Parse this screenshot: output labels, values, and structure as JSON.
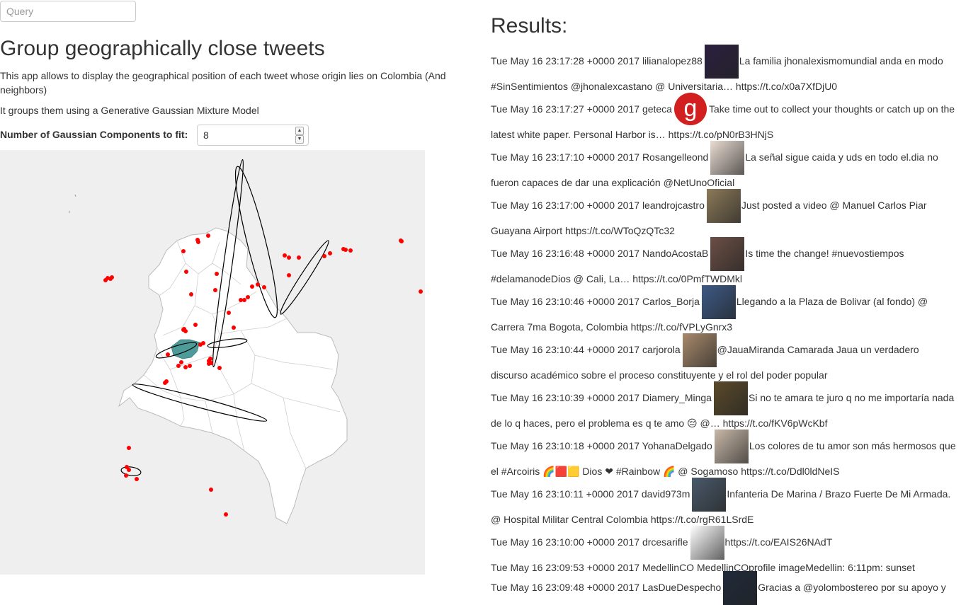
{
  "query": {
    "placeholder": "Query",
    "value": ""
  },
  "app": {
    "title": "Group geographically close tweets",
    "description": "This app allows to display the geographical position of each tweet whose origin lies on Colombia (And neighbors)",
    "description2": "It groups them using a Generative Gaussian Mixture Model",
    "components_label": "Number of Gaussian Components to fit:",
    "components_value": "8"
  },
  "map": {
    "background": "#efefef",
    "land_fill": "#ffffff",
    "border_color": "#bbbbbb",
    "point_color": "#ff0000",
    "ellipse_color": "#000000",
    "highlight_color": "#4e9c9a"
  },
  "results": {
    "title": "Results:",
    "tweets": [
      {
        "time": "Tue May 16 23:17:28 +0000 2017",
        "user": "lilianalopez88",
        "avatar_color": "#2b2040",
        "avatar_letter": "",
        "text": "La familia jhonalexismomundial anda en modo #SinSentimientos @jhonalexcastano @ Universitaria… https://t.co/x0a7XfDjU0"
      },
      {
        "time": "Tue May 16 23:17:27 +0000 2017",
        "user": "geteca",
        "avatar_color": "#d21f1f",
        "avatar_letter": "g",
        "text": "Take time out to collect your thoughts or catch up on the latest white paper. Personal Harbor is… https://t.co/pN0rB3HNjS"
      },
      {
        "time": "Tue May 16 23:17:10 +0000 2017",
        "user": "Rosangelleond",
        "avatar_color": "#e9dcd2",
        "avatar_letter": "",
        "text": "La señal sigue caida y uds en todo el.dia no fueron capaces de dar una explicación @NetUnoOficial"
      },
      {
        "time": "Tue May 16 23:17:00 +0000 2017",
        "user": "leandrojcastro",
        "avatar_color": "#8c7a5a",
        "avatar_letter": "",
        "text": "Just posted a video @ Manuel Carlos Piar Guayana Airport https://t.co/WToQzQTc32"
      },
      {
        "time": "Tue May 16 23:16:48 +0000 2017",
        "user": "NandoAcostaB",
        "avatar_color": "#6b4f45",
        "avatar_letter": "",
        "text": "Is time the change! #nuevostiempos #delamanodeDios @ Cali, La… https://t.co/0PmfTWDMkl"
      },
      {
        "time": "Tue May 16 23:10:46 +0000 2017",
        "user": "Carlos_Borja",
        "avatar_color": "#3d5a86",
        "avatar_letter": "",
        "text": "Llegando a la Plaza de Bolivar (al fondo) @ Carrera 7ma Bogota, Colombia https://t.co/fVPLyGnrx3"
      },
      {
        "time": "Tue May 16 23:10:44 +0000 2017",
        "user": "carjorola",
        "avatar_color": "#a88a6c",
        "avatar_letter": "",
        "text": "@JauaMiranda Camarada Jaua un verdadero discurso académico sobre el proceso constituyente y el rol del poder popular"
      },
      {
        "time": "Tue May 16 23:10:39 +0000 2017",
        "user": "Diamery_Minga",
        "avatar_color": "#5a4a2a",
        "avatar_letter": "",
        "text": "Si no te amara te juro q no me importaría nada de lo q haces, pero el problema es q te amo 😔 @… https://t.co/fKV6pWcKbf"
      },
      {
        "time": "Tue May 16 23:10:18 +0000 2017",
        "user": "YohanaDelgado",
        "avatar_color": "#c8b8a8",
        "avatar_letter": "",
        "text": "Los colores de tu amor son más hermosos que el #Arcoiris 🌈🟥🟨 Dios ❤ #Rainbow 🌈 @ Sogamoso https://t.co/Ddl0ldNeIS"
      },
      {
        "time": "Tue May 16 23:10:11 +0000 2017",
        "user": "david973m",
        "avatar_color": "#4a5a6a",
        "avatar_letter": "",
        "text": "Infanteria De Marina / Brazo Fuerte De Mi Armada. @ Hospital Militar Central Colombia https://t.co/rgR61LSrdE"
      },
      {
        "time": "Tue May 16 23:10:00 +0000 2017",
        "user": "drcesarifle",
        "avatar_color": "#ffffff",
        "avatar_letter": "",
        "text": "https://t.co/EAIS26NAdT"
      },
      {
        "time": "Tue May 16 23:09:53 +0000 2017",
        "user": "MedellinCO",
        "avatar_color": "",
        "avatar_letter": "",
        "text": "MedellinCOprofile imageMedellin: 6:11pm: sunset"
      },
      {
        "time": "Tue May 16 23:09:48 +0000 2017",
        "user": "LasDueDespecho",
        "avatar_color": "#1f2a3a",
        "avatar_letter": "",
        "text": "Gracias a @yolombostereo por su apoyo y"
      }
    ]
  }
}
